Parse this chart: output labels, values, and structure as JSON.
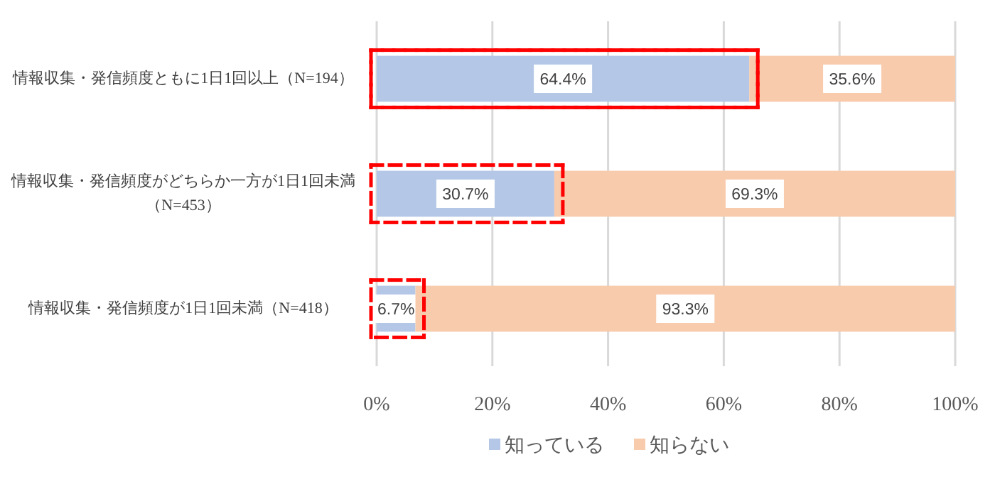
{
  "chart_data": {
    "type": "bar",
    "orientation": "horizontal",
    "stacked": true,
    "categories": [
      "情報収集・発信頻度ともに1日1回以上（N=194）",
      "情報収集・発信頻度がどちらか一方が1日1回未満（N=453）",
      "情報収集・発信頻度が1日1回未満（N=418）"
    ],
    "series": [
      {
        "name": "知っている",
        "color": "#b4c7e7",
        "values": [
          64.4,
          30.7,
          6.7
        ],
        "value_labels": [
          "64.4%",
          "30.7%",
          "6.7%"
        ]
      },
      {
        "name": "知らない",
        "color": "#f8cbad",
        "values": [
          35.6,
          69.3,
          93.3
        ],
        "value_labels": [
          "35.6%",
          "69.3%",
          "93.3%"
        ]
      }
    ],
    "xlim": [
      0,
      100
    ],
    "xticks": [
      {
        "value": 0,
        "label": "0%"
      },
      {
        "value": 20,
        "label": "20%"
      },
      {
        "value": 40,
        "label": "40%"
      },
      {
        "value": 60,
        "label": "60%"
      },
      {
        "value": 80,
        "label": "80%"
      },
      {
        "value": 100,
        "label": "100%"
      }
    ],
    "grid": "x",
    "legend": "bottom"
  }
}
